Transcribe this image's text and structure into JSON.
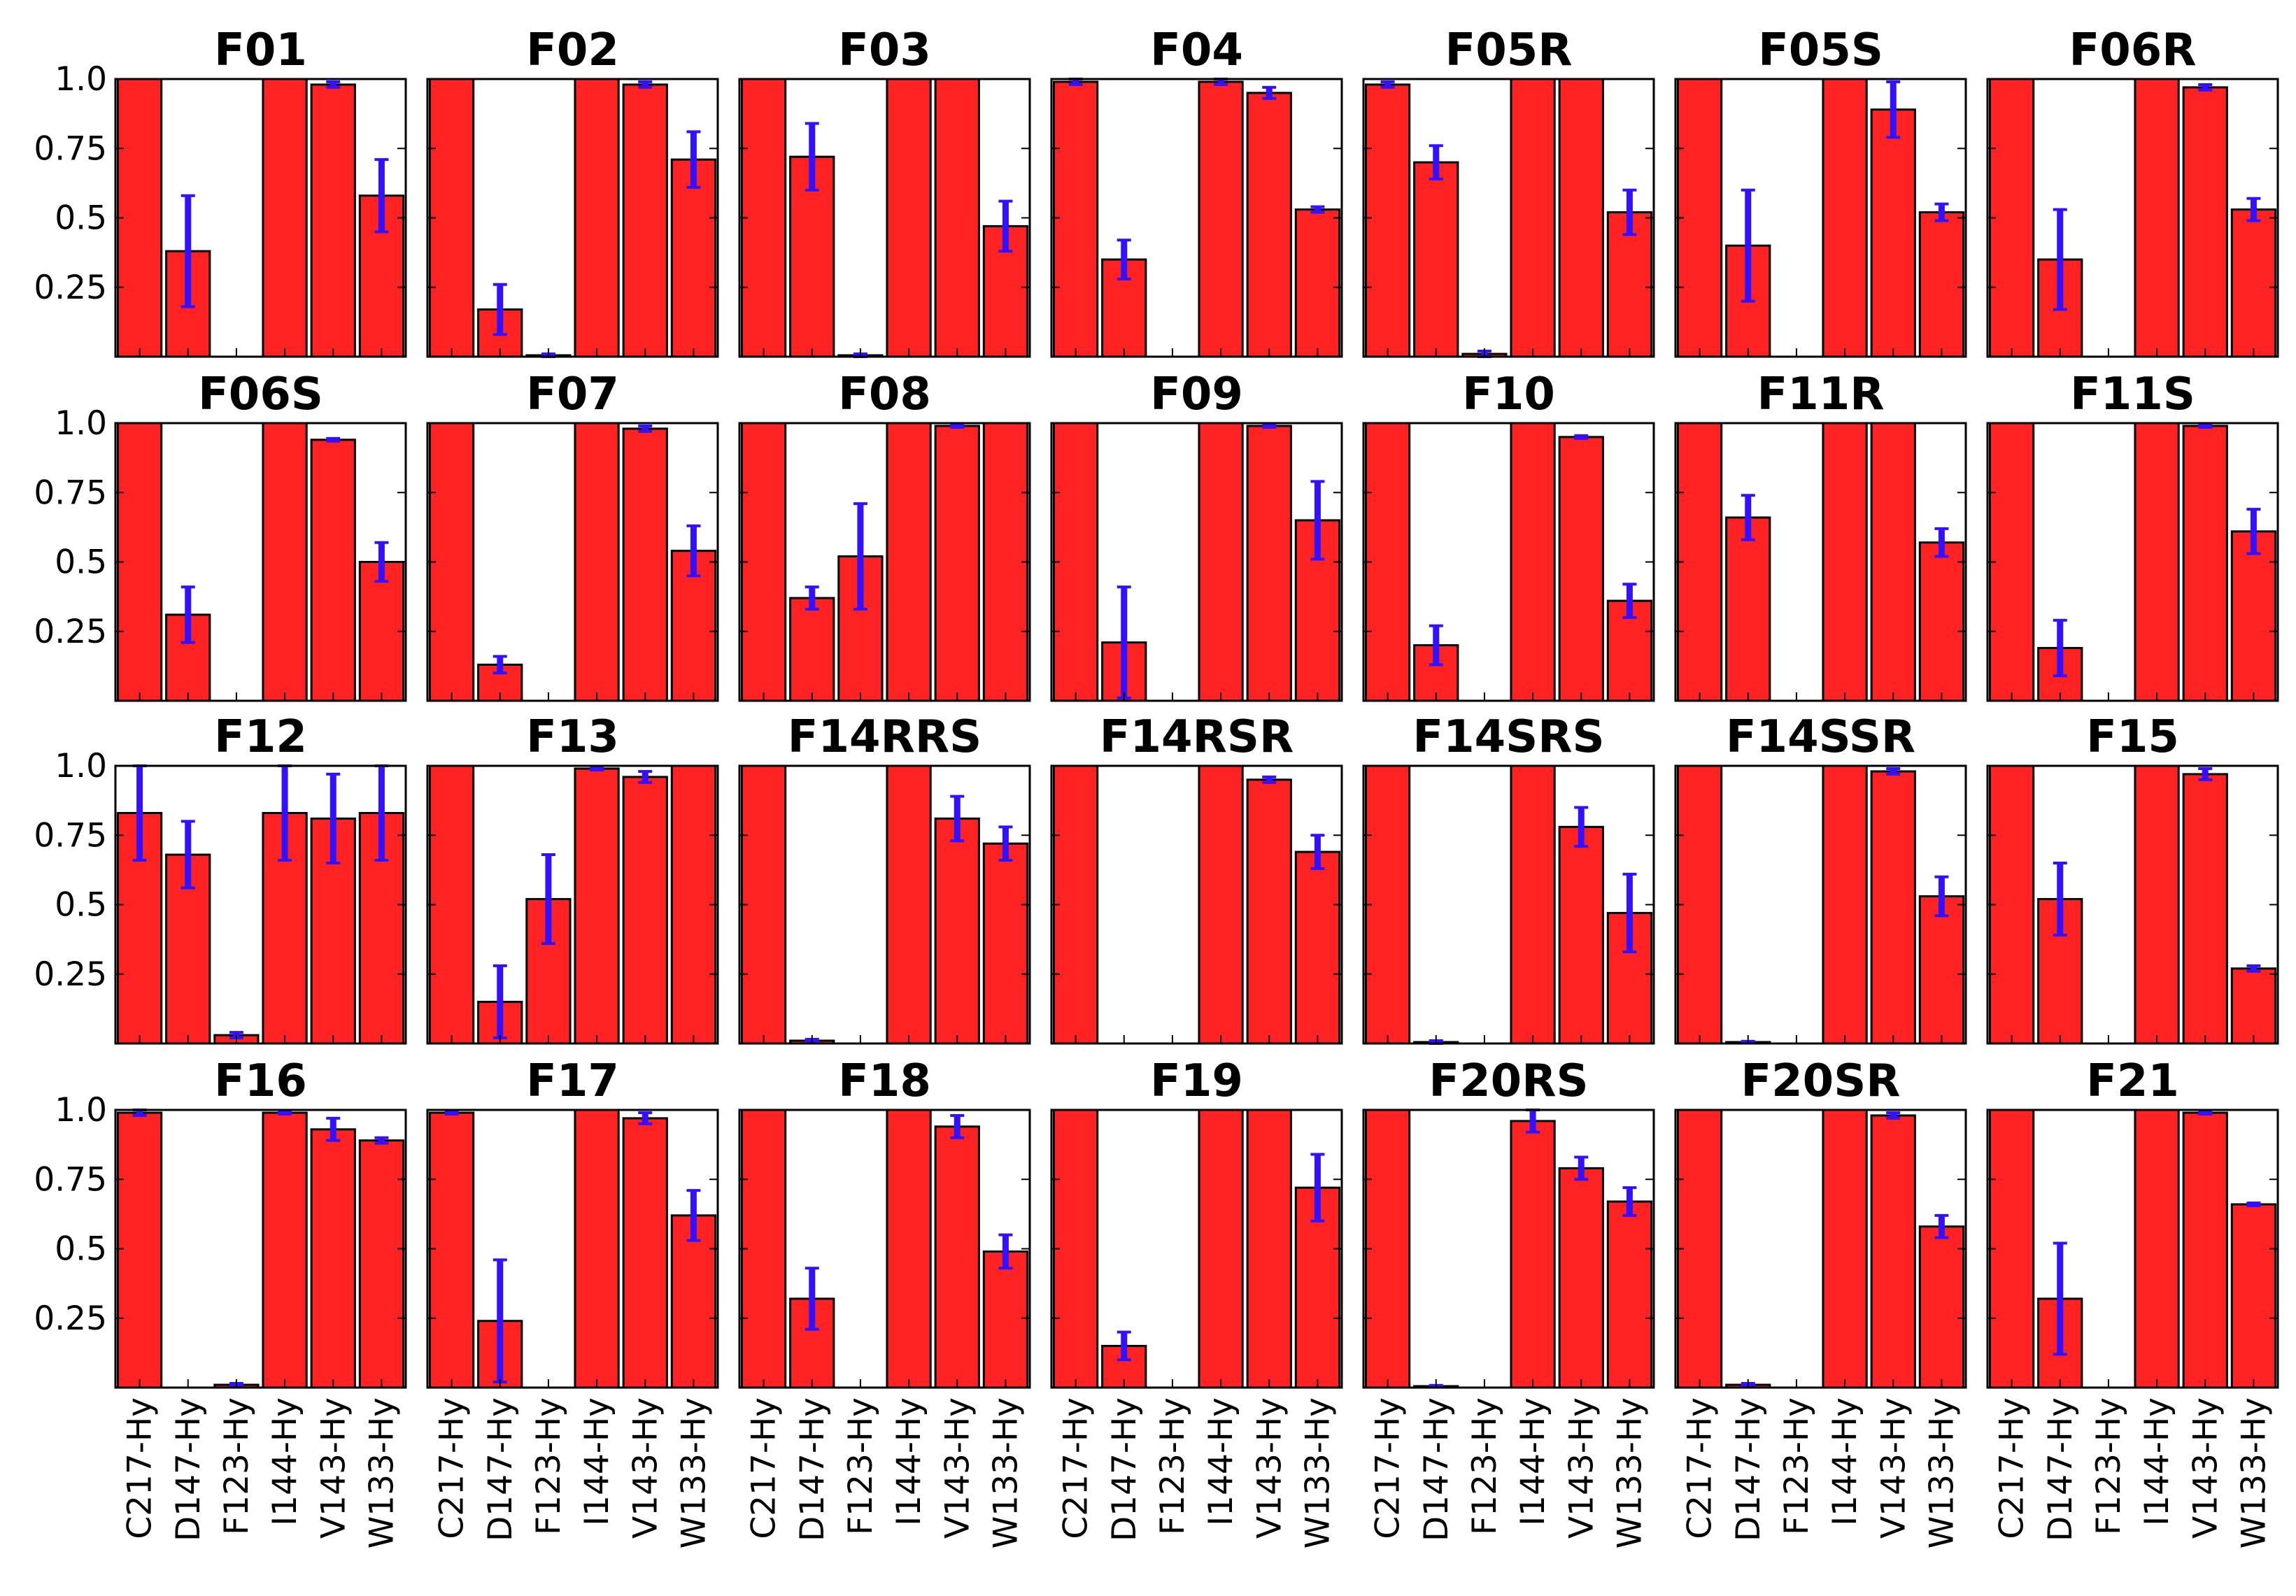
{
  "chart_data": {
    "type": "bar",
    "layout": {
      "rows": 4,
      "cols": 7
    },
    "categories": [
      "C217-Hy",
      "D147-Hy",
      "F123-Hy",
      "I144-Hy",
      "V143-Hy",
      "W133-Hy"
    ],
    "ylim": [
      0,
      1.0
    ],
    "yticks": [
      0.25,
      0.5,
      0.75,
      1.0
    ],
    "ytick_labels": [
      "0.25",
      "0.5",
      "0.75",
      "1.0"
    ],
    "bar_color": "#ff2222",
    "error_color": "#3311ff",
    "panels": [
      {
        "title": "F01",
        "values": [
          1.0,
          0.38,
          0.0,
          1.0,
          0.98,
          0.58
        ],
        "errors": [
          0.0,
          0.2,
          0.0,
          0.0,
          0.01,
          0.13
        ]
      },
      {
        "title": "F02",
        "values": [
          1.0,
          0.17,
          0.005,
          1.0,
          0.98,
          0.71
        ],
        "errors": [
          0.0,
          0.09,
          0.005,
          0.0,
          0.01,
          0.1
        ]
      },
      {
        "title": "F03",
        "values": [
          1.0,
          0.72,
          0.005,
          1.0,
          1.0,
          0.47
        ],
        "errors": [
          0.0,
          0.12,
          0.005,
          0.0,
          0.0,
          0.09
        ]
      },
      {
        "title": "F04",
        "values": [
          0.99,
          0.35,
          0.0,
          0.99,
          0.95,
          0.53
        ],
        "errors": [
          0.01,
          0.07,
          0.0,
          0.01,
          0.02,
          0.01
        ]
      },
      {
        "title": "F05R",
        "values": [
          0.98,
          0.7,
          0.01,
          1.0,
          1.0,
          0.52
        ],
        "errors": [
          0.01,
          0.06,
          0.01,
          0.0,
          0.0,
          0.08
        ]
      },
      {
        "title": "F05S",
        "values": [
          1.0,
          0.4,
          0.0,
          1.0,
          0.89,
          0.52
        ],
        "errors": [
          0.0,
          0.2,
          0.0,
          0.0,
          0.1,
          0.03
        ]
      },
      {
        "title": "F06R",
        "values": [
          1.0,
          0.35,
          0.0,
          1.0,
          0.97,
          0.53
        ],
        "errors": [
          0.0,
          0.18,
          0.0,
          0.0,
          0.01,
          0.04
        ]
      },
      {
        "title": "F06S",
        "values": [
          1.0,
          0.31,
          0.0,
          1.0,
          0.94,
          0.5
        ],
        "errors": [
          0.0,
          0.1,
          0.0,
          0.0,
          0.005,
          0.07
        ]
      },
      {
        "title": "F07",
        "values": [
          1.0,
          0.13,
          0.0,
          1.0,
          0.98,
          0.54
        ],
        "errors": [
          0.0,
          0.03,
          0.0,
          0.0,
          0.01,
          0.09
        ]
      },
      {
        "title": "F08",
        "values": [
          1.0,
          0.37,
          0.52,
          1.0,
          0.99,
          1.0
        ],
        "errors": [
          0.0,
          0.04,
          0.19,
          0.0,
          0.005,
          0.0
        ]
      },
      {
        "title": "F09",
        "values": [
          1.0,
          0.21,
          0.0,
          1.0,
          0.99,
          0.65
        ],
        "errors": [
          0.0,
          0.2,
          0.0,
          0.0,
          0.005,
          0.14
        ]
      },
      {
        "title": "F10",
        "values": [
          1.0,
          0.2,
          0.0,
          1.0,
          0.95,
          0.36
        ],
        "errors": [
          0.0,
          0.07,
          0.0,
          0.0,
          0.005,
          0.06
        ]
      },
      {
        "title": "F11R",
        "values": [
          1.0,
          0.66,
          0.0,
          1.0,
          1.0,
          0.57
        ],
        "errors": [
          0.0,
          0.08,
          0.0,
          0.0,
          0.0,
          0.05
        ]
      },
      {
        "title": "F11S",
        "values": [
          1.0,
          0.19,
          0.0,
          1.0,
          0.99,
          0.61
        ],
        "errors": [
          0.0,
          0.1,
          0.0,
          0.0,
          0.005,
          0.08
        ]
      },
      {
        "title": "F12",
        "values": [
          0.83,
          0.68,
          0.03,
          0.83,
          0.81,
          0.83
        ],
        "errors": [
          0.17,
          0.12,
          0.01,
          0.17,
          0.16,
          0.17
        ]
      },
      {
        "title": "F13",
        "values": [
          1.0,
          0.15,
          0.52,
          0.99,
          0.96,
          1.0
        ],
        "errors": [
          0.0,
          0.13,
          0.16,
          0.005,
          0.02,
          0.0
        ]
      },
      {
        "title": "F14RRS",
        "values": [
          1.0,
          0.01,
          0.0,
          1.0,
          0.81,
          0.72
        ],
        "errors": [
          0.0,
          0.005,
          0.0,
          0.0,
          0.08,
          0.06
        ]
      },
      {
        "title": "F14RSR",
        "values": [
          1.0,
          0.0,
          0.0,
          1.0,
          0.95,
          0.69
        ],
        "errors": [
          0.0,
          0.0,
          0.0,
          0.0,
          0.01,
          0.06
        ]
      },
      {
        "title": "F14SRS",
        "values": [
          1.0,
          0.005,
          0.0,
          1.0,
          0.78,
          0.47
        ],
        "errors": [
          0.0,
          0.005,
          0.0,
          0.0,
          0.07,
          0.14
        ]
      },
      {
        "title": "F14SSR",
        "values": [
          1.0,
          0.005,
          0.0,
          1.0,
          0.98,
          0.53
        ],
        "errors": [
          0.0,
          0.003,
          0.0,
          0.0,
          0.01,
          0.07
        ]
      },
      {
        "title": "F15",
        "values": [
          1.0,
          0.52,
          0.0,
          1.0,
          0.97,
          0.27
        ],
        "errors": [
          0.0,
          0.13,
          0.0,
          0.0,
          0.02,
          0.01
        ]
      },
      {
        "title": "F16",
        "values": [
          0.99,
          0.0,
          0.01,
          0.99,
          0.93,
          0.89
        ],
        "errors": [
          0.01,
          0.0,
          0.005,
          0.005,
          0.04,
          0.01
        ]
      },
      {
        "title": "F17",
        "values": [
          0.99,
          0.24,
          0.0,
          1.0,
          0.97,
          0.62
        ],
        "errors": [
          0.005,
          0.22,
          0.0,
          0.0,
          0.02,
          0.09
        ]
      },
      {
        "title": "F18",
        "values": [
          1.0,
          0.32,
          0.0,
          1.0,
          0.94,
          0.49
        ],
        "errors": [
          0.0,
          0.11,
          0.0,
          0.0,
          0.04,
          0.06
        ]
      },
      {
        "title": "F19",
        "values": [
          1.0,
          0.15,
          0.0,
          1.0,
          1.0,
          0.72
        ],
        "errors": [
          0.0,
          0.05,
          0.0,
          0.0,
          0.0,
          0.12
        ]
      },
      {
        "title": "F20RS",
        "values": [
          1.0,
          0.005,
          0.0,
          0.96,
          0.79,
          0.67
        ],
        "errors": [
          0.0,
          0.003,
          0.0,
          0.04,
          0.04,
          0.05
        ]
      },
      {
        "title": "F20SR",
        "values": [
          1.0,
          0.01,
          0.0,
          1.0,
          0.98,
          0.58
        ],
        "errors": [
          0.0,
          0.005,
          0.0,
          0.0,
          0.01,
          0.04
        ]
      },
      {
        "title": "F21",
        "values": [
          1.0,
          0.32,
          0.0,
          1.0,
          0.99,
          0.66
        ],
        "errors": [
          0.0,
          0.2,
          0.0,
          0.0,
          0.005,
          0.005
        ]
      }
    ]
  }
}
